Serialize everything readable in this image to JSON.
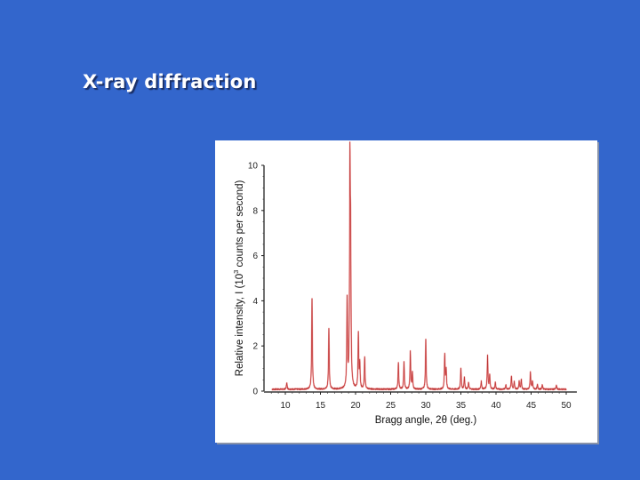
{
  "slide": {
    "title": "X-ray diffraction",
    "background_color": "#3366cc",
    "title_color": "#ffffff"
  },
  "chart_data": {
    "type": "line",
    "title": "",
    "xlabel": "Bragg angle, 2θ (deg.)",
    "ylabel": "Relative intensity, I (10³ counts per second)",
    "xlim": [
      7.5,
      50.5
    ],
    "ylim": [
      0,
      10
    ],
    "xticks": [
      10,
      15,
      20,
      25,
      30,
      35,
      40,
      45,
      50
    ],
    "yticks": [
      0,
      2,
      4,
      6,
      8,
      10
    ],
    "grid": false,
    "legend": null,
    "line_color": "#d94a4a",
    "baseline": 0.08,
    "x_start": 8.1,
    "x_end": 50.0,
    "peaks": [
      {
        "x": 10.2,
        "y": 0.3
      },
      {
        "x": 13.8,
        "y": 4.0
      },
      {
        "x": 16.2,
        "y": 2.7
      },
      {
        "x": 18.8,
        "y": 3.9
      },
      {
        "x": 19.2,
        "y": 9.4
      },
      {
        "x": 19.3,
        "y": 5.5
      },
      {
        "x": 20.4,
        "y": 2.4
      },
      {
        "x": 20.6,
        "y": 1.1
      },
      {
        "x": 21.3,
        "y": 1.4
      },
      {
        "x": 26.1,
        "y": 1.15
      },
      {
        "x": 26.9,
        "y": 1.2
      },
      {
        "x": 27.8,
        "y": 1.65
      },
      {
        "x": 28.1,
        "y": 0.7
      },
      {
        "x": 30.0,
        "y": 2.2
      },
      {
        "x": 32.7,
        "y": 1.55
      },
      {
        "x": 32.9,
        "y": 0.85
      },
      {
        "x": 35.0,
        "y": 0.95
      },
      {
        "x": 35.5,
        "y": 0.55
      },
      {
        "x": 36.1,
        "y": 0.3
      },
      {
        "x": 37.9,
        "y": 0.35
      },
      {
        "x": 38.8,
        "y": 1.5
      },
      {
        "x": 39.1,
        "y": 0.6
      },
      {
        "x": 39.9,
        "y": 0.3
      },
      {
        "x": 41.4,
        "y": 0.2
      },
      {
        "x": 42.2,
        "y": 0.6
      },
      {
        "x": 42.6,
        "y": 0.35
      },
      {
        "x": 43.3,
        "y": 0.35
      },
      {
        "x": 43.6,
        "y": 0.45
      },
      {
        "x": 44.9,
        "y": 0.75
      },
      {
        "x": 45.2,
        "y": 0.35
      },
      {
        "x": 45.9,
        "y": 0.2
      },
      {
        "x": 46.6,
        "y": 0.2
      },
      {
        "x": 48.6,
        "y": 0.18
      }
    ]
  }
}
